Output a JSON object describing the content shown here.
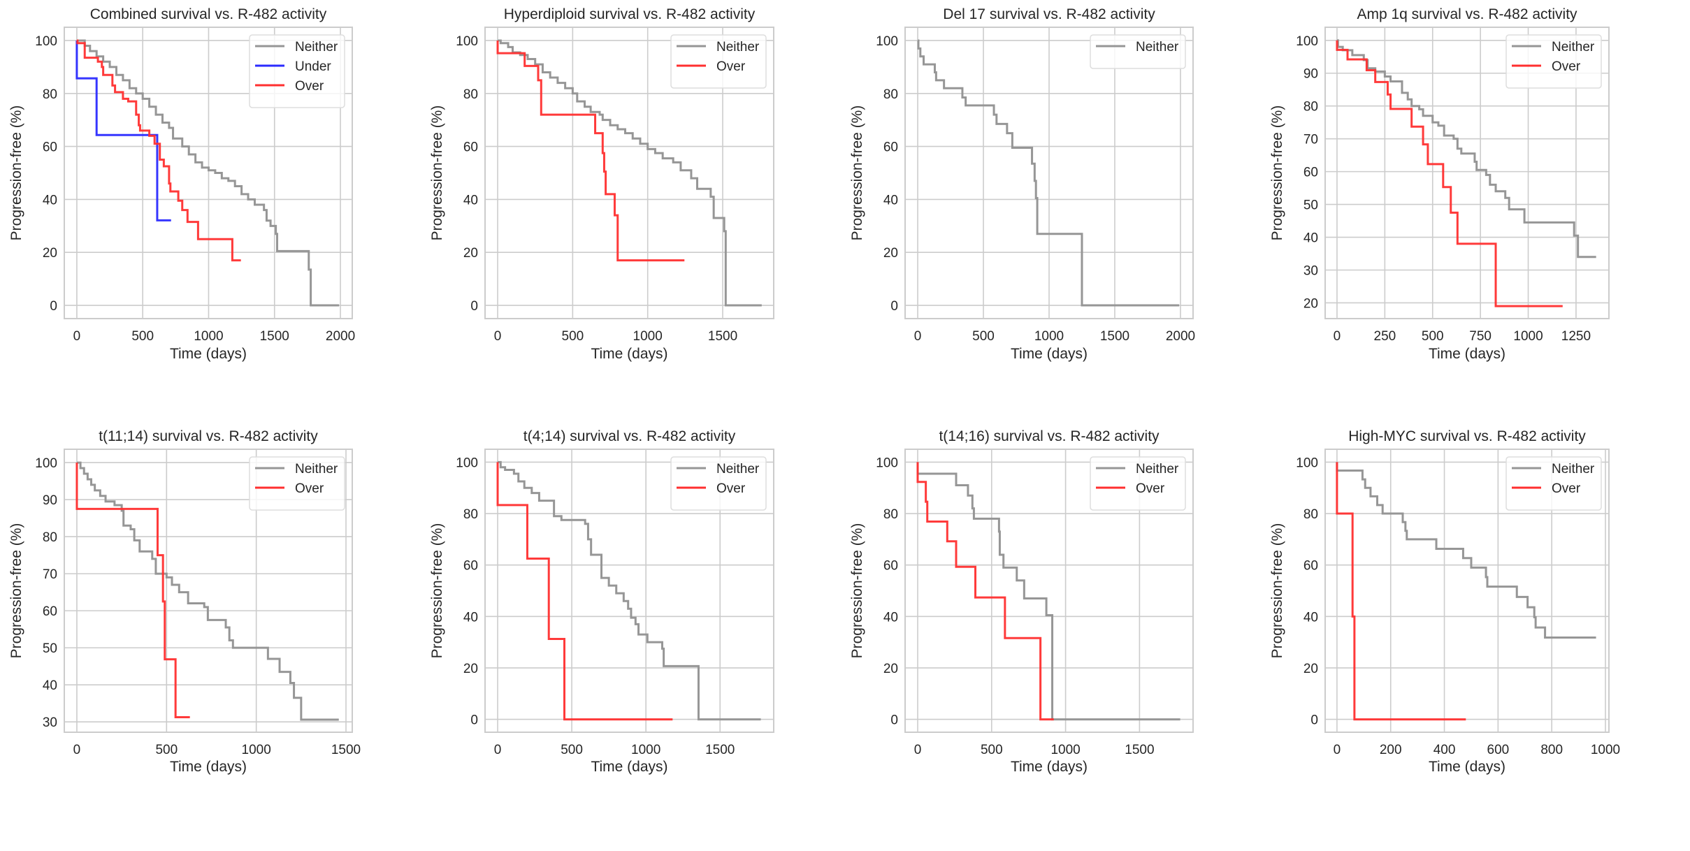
{
  "colors": {
    "Neither": "#969696",
    "Under": "#2b2bff",
    "Over": "#ff2f2f"
  },
  "chart_data": [
    {
      "type": "line",
      "step": true,
      "title": "Combined survival vs. R-482 activity",
      "xlabel": "Time (days)",
      "ylabel": "Progression-free (%)",
      "xlim": [
        -95,
        2090
      ],
      "ylim": [
        -5,
        105
      ],
      "xticks": [
        0,
        500,
        1000,
        1500,
        2000
      ],
      "yticks": [
        0,
        20,
        40,
        60,
        80,
        100
      ],
      "grid": true,
      "legend": "top-right",
      "series": [
        {
          "name": "Neither",
          "x": [
            0,
            60,
            100,
            150,
            200,
            250,
            300,
            350,
            400,
            450,
            500,
            550,
            600,
            650,
            700,
            730,
            800,
            850,
            900,
            950,
            1000,
            1050,
            1100,
            1150,
            1200,
            1250,
            1300,
            1350,
            1420,
            1440,
            1470,
            1510,
            1520,
            1760,
            1775,
            1990
          ],
          "y": [
            100,
            98,
            96,
            94,
            92,
            90,
            87,
            85,
            82,
            80,
            78,
            75,
            72,
            69,
            67,
            63,
            60,
            57,
            54,
            52,
            51,
            50,
            48,
            47,
            45,
            42,
            40,
            38,
            36,
            32,
            30,
            27,
            20.5,
            13.5,
            0,
            0
          ]
        },
        {
          "name": "Under",
          "x": [
            0,
            0,
            150,
            610,
            715
          ],
          "y": [
            100,
            85.7,
            64.3,
            32.1,
            32.1
          ]
        },
        {
          "name": "Over",
          "x": [
            0,
            5,
            60,
            160,
            190,
            200,
            270,
            290,
            350,
            390,
            450,
            470,
            480,
            550,
            590,
            630,
            660,
            700,
            710,
            770,
            800,
            840,
            920,
            1180,
            1245
          ],
          "y": [
            100,
            99,
            93.5,
            92,
            90,
            87,
            83,
            80.5,
            78,
            77,
            72,
            68,
            66,
            64,
            61,
            55,
            52.5,
            46,
            43,
            39.5,
            36,
            31.5,
            25,
            17,
            17
          ]
        }
      ]
    },
    {
      "type": "line",
      "step": true,
      "title": "Hyperdiploid survival vs. R-482 activity",
      "xlabel": "Time (days)",
      "ylabel": "Progression-free (%)",
      "xlim": [
        -84,
        1840
      ],
      "ylim": [
        -5,
        105
      ],
      "xticks": [
        0,
        500,
        1000,
        1500
      ],
      "yticks": [
        0,
        20,
        40,
        60,
        80,
        100
      ],
      "grid": true,
      "legend": "top-right",
      "series": [
        {
          "name": "Neither",
          "x": [
            0,
            20,
            70,
            100,
            150,
            200,
            250,
            300,
            350,
            400,
            450,
            500,
            530,
            580,
            620,
            680,
            700,
            750,
            800,
            850,
            900,
            950,
            1000,
            1050,
            1100,
            1170,
            1220,
            1290,
            1330,
            1420,
            1440,
            1510,
            1520,
            1760
          ],
          "y": [
            100,
            99,
            97.5,
            95.5,
            94.5,
            93,
            91,
            88,
            86,
            84,
            82,
            80,
            77,
            75,
            73,
            72,
            70,
            68,
            66.5,
            65,
            63,
            61,
            59,
            57.5,
            55.5,
            54,
            51,
            48,
            44,
            41,
            33,
            28,
            0,
            0
          ]
        },
        {
          "name": "Over",
          "x": [
            0,
            0,
            180,
            270,
            290,
            650,
            700,
            710,
            720,
            780,
            800,
            1245
          ],
          "y": [
            100,
            95.2,
            90.4,
            85,
            72,
            65,
            57.5,
            50.5,
            42,
            34,
            17,
            17
          ]
        }
      ]
    },
    {
      "type": "line",
      "step": true,
      "title": "Del 17 survival vs. R-482 activity",
      "xlabel": "Time (days)",
      "ylabel": "Progression-free (%)",
      "xlim": [
        -96,
        2096
      ],
      "ylim": [
        -5,
        105
      ],
      "xticks": [
        0,
        500,
        1000,
        1500,
        2000
      ],
      "yticks": [
        0,
        20,
        40,
        60,
        80,
        100
      ],
      "grid": true,
      "legend": "top-right",
      "series": [
        {
          "name": "Neither",
          "x": [
            0,
            5,
            20,
            45,
            130,
            140,
            200,
            340,
            365,
            580,
            600,
            680,
            720,
            870,
            890,
            900,
            910,
            1250,
            1990
          ],
          "y": [
            100,
            97,
            94,
            91,
            88,
            85,
            82,
            78.5,
            75.5,
            72,
            68.5,
            65,
            59.5,
            53.5,
            47,
            40.5,
            27,
            0,
            0
          ]
        }
      ]
    },
    {
      "type": "line",
      "step": true,
      "title": "Amp 1q survival vs. R-482 activity",
      "xlabel": "Time (days)",
      "ylabel": "Progression-free (%)",
      "xlim": [
        -62,
        1422
      ],
      "ylim": [
        15.2,
        104
      ],
      "xticks": [
        0,
        250,
        500,
        750,
        1000,
        1250
      ],
      "yticks": [
        20,
        30,
        40,
        50,
        60,
        70,
        80,
        90,
        100
      ],
      "grid": true,
      "legend": "top-right",
      "series": [
        {
          "name": "Neither",
          "x": [
            0,
            5,
            30,
            80,
            140,
            160,
            200,
            250,
            280,
            340,
            370,
            390,
            430,
            450,
            500,
            530,
            560,
            610,
            630,
            650,
            720,
            730,
            780,
            800,
            830,
            880,
            900,
            980,
            1240,
            1260,
            1355
          ],
          "y": [
            100,
            98,
            97,
            95.5,
            94,
            91.5,
            90.5,
            89,
            87.5,
            84,
            82,
            80,
            79,
            77,
            75,
            74,
            71,
            70,
            67,
            65.5,
            63,
            60.5,
            59,
            56,
            54,
            52,
            48.5,
            44.5,
            40.5,
            34,
            34
          ]
        },
        {
          "name": "Over",
          "x": [
            0,
            0,
            55,
            155,
            200,
            265,
            280,
            390,
            450,
            475,
            555,
            595,
            630,
            830,
            1180
          ],
          "y": [
            100,
            97.1,
            94.2,
            90.9,
            87.3,
            83.5,
            79.1,
            73.7,
            68.3,
            62.3,
            55.3,
            47.5,
            38,
            19,
            19
          ]
        }
      ]
    },
    {
      "type": "line",
      "step": true,
      "title": "t(11;14) survival vs. R-482 activity",
      "xlabel": "Time (days)",
      "ylabel": "Progression-free (%)",
      "xlim": [
        -70,
        1535
      ],
      "ylim": [
        27.2,
        103.6
      ],
      "xticks": [
        0,
        500,
        1000,
        1500
      ],
      "yticks": [
        30,
        40,
        50,
        60,
        70,
        80,
        90,
        100
      ],
      "grid": true,
      "legend": "top-right",
      "series": [
        {
          "name": "Neither",
          "x": [
            0,
            20,
            40,
            60,
            80,
            100,
            130,
            160,
            210,
            250,
            260,
            300,
            320,
            350,
            420,
            440,
            500,
            530,
            570,
            620,
            710,
            730,
            830,
            850,
            870,
            1065,
            1130,
            1190,
            1210,
            1250,
            1460
          ],
          "y": [
            100,
            98.5,
            97,
            95.5,
            94,
            92.5,
            91,
            89.5,
            88.5,
            87,
            83,
            82,
            79,
            76,
            74,
            70,
            69,
            67,
            65,
            62,
            61,
            57.5,
            55.5,
            52,
            50,
            47,
            43.5,
            40.5,
            36.5,
            30.6,
            30.6
          ]
        },
        {
          "name": "Over",
          "x": [
            0,
            0,
            450,
            480,
            490,
            550,
            630
          ],
          "y": [
            100,
            87.5,
            75,
            62.5,
            46.9,
            31.25,
            31.25
          ]
        }
      ]
    },
    {
      "type": "line",
      "step": true,
      "title": "t(4;14) survival vs. R-482 activity",
      "xlabel": "Time (days)",
      "ylabel": "Progression-free (%)",
      "xlim": [
        -85,
        1862
      ],
      "ylim": [
        -5,
        105
      ],
      "xticks": [
        0,
        500,
        1000,
        1500
      ],
      "yticks": [
        0,
        20,
        40,
        60,
        80,
        100
      ],
      "grid": true,
      "legend": "top-right",
      "series": [
        {
          "name": "Neither",
          "x": [
            0,
            20,
            50,
            110,
            140,
            180,
            230,
            280,
            380,
            430,
            590,
            610,
            630,
            700,
            750,
            800,
            850,
            880,
            900,
            930,
            950,
            1010,
            1110,
            1120,
            1355,
            1775
          ],
          "y": [
            100,
            98,
            97,
            95.5,
            92.5,
            90,
            88,
            85,
            79,
            77.5,
            76,
            70,
            64,
            55,
            52,
            49,
            46,
            43,
            39.5,
            37,
            33,
            30,
            27.5,
            20.7,
            0,
            0
          ]
        },
        {
          "name": "Over",
          "x": [
            0,
            0,
            200,
            345,
            450,
            1180
          ],
          "y": [
            100,
            83.3,
            62.5,
            31.25,
            0,
            0
          ]
        }
      ]
    },
    {
      "type": "line",
      "step": true,
      "title": "t(14;16) survival vs. R-482 activity",
      "xlabel": "Time (days)",
      "ylabel": "Progression-free (%)",
      "xlim": [
        -85,
        1862
      ],
      "ylim": [
        -5,
        105
      ],
      "xticks": [
        0,
        500,
        1000,
        1500
      ],
      "yticks": [
        0,
        20,
        40,
        60,
        80,
        100
      ],
      "grid": true,
      "legend": "top-right",
      "series": [
        {
          "name": "Neither",
          "x": [
            0,
            0,
            260,
            340,
            370,
            380,
            550,
            555,
            580,
            670,
            720,
            870,
            910,
            1775
          ],
          "y": [
            100,
            95.5,
            91,
            87,
            82,
            78,
            73,
            64,
            59,
            54,
            47,
            40.5,
            0,
            0
          ]
        },
        {
          "name": "Over",
          "x": [
            0,
            0,
            55,
            65,
            200,
            260,
            390,
            590,
            830,
            920
          ],
          "y": [
            100,
            92.3,
            84.6,
            76.9,
            69.2,
            59.3,
            47.4,
            31.6,
            0,
            0
          ]
        }
      ]
    },
    {
      "type": "line",
      "step": true,
      "title": "High-MYC survival vs. R-482 activity",
      "xlabel": "Time (days)",
      "ylabel": "Progression-free (%)",
      "xlim": [
        -44,
        1013
      ],
      "ylim": [
        -5,
        105
      ],
      "xticks": [
        0,
        200,
        400,
        600,
        800,
        1000
      ],
      "yticks": [
        0,
        20,
        40,
        60,
        80,
        100
      ],
      "grid": true,
      "legend": "top-right",
      "series": [
        {
          "name": "Neither",
          "x": [
            0,
            0,
            95,
            105,
            125,
            150,
            170,
            245,
            255,
            260,
            370,
            470,
            500,
            555,
            560,
            670,
            710,
            735,
            740,
            775,
            965
          ],
          "y": [
            100,
            96.7,
            93.3,
            90,
            86.7,
            83.3,
            80,
            76.7,
            73.3,
            70,
            66.3,
            62.7,
            59,
            55.3,
            51.6,
            47.6,
            43.6,
            39.7,
            35.7,
            31.8,
            31.8
          ]
        },
        {
          "name": "Over",
          "x": [
            0,
            0,
            58,
            65,
            480
          ],
          "y": [
            100,
            80,
            40,
            0,
            0
          ]
        }
      ]
    }
  ]
}
